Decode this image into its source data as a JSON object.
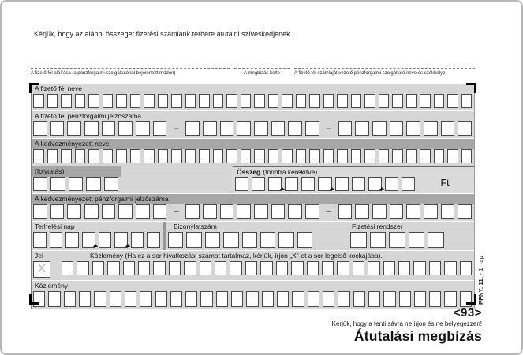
{
  "header": {
    "instruction": "Kérjük, hogy az alábbi összeget fizetési számlánk terhére átutalni szíveskedjenek."
  },
  "signature_strip": {
    "payer_signature": "A fizető fél aláírása (a pénzforgalmi szolgáltatónál bejelentett módon)",
    "order_date": "A megbízás kelte",
    "payer_bank": "A fizető fél számláját vezető pénzforgalmi szolgáltató neve és székhelye"
  },
  "form": {
    "payer_name": {
      "label": "A fizető fél neve",
      "boxes": 32
    },
    "payer_account": {
      "label": "A fizető fél pénzforgalmi jelzőszáma",
      "groups": [
        8,
        8,
        8
      ],
      "separator": "–"
    },
    "beneficiary_name": {
      "label": "A kedvezményezett neve",
      "boxes": 32
    },
    "continuation": {
      "label": "(folytatás)",
      "boxes": 5
    },
    "amount": {
      "label_bold": "Összeg",
      "label_note": "(forintra kerekítve)",
      "boxes": 11,
      "tick_after": [
        2,
        5,
        8
      ],
      "currency": "Ft"
    },
    "beneficiary_account": {
      "label": "A kedvezményezett pénzforgalmi jelzőszáma",
      "groups": [
        8,
        8,
        8
      ],
      "separator": "–"
    },
    "debit_day": {
      "label": "Terhelési nap",
      "boxes": 8,
      "tick_after": [
        3,
        5
      ]
    },
    "voucher_number": {
      "label": "Bizonylatszám",
      "boxes": 8
    },
    "payment_system": {
      "label": "Fizetési rendszer",
      "boxes": 5
    },
    "flag": {
      "label": "Jel",
      "watermark": "X"
    },
    "remittance_ref": {
      "label": "Közlemény (Ha ez a sor hivatkozási számot tartalmaz, kérjük, írjon „X”-et a sor legelső kockájába).",
      "boxes": 27
    },
    "remittance": {
      "label": "Közlemény",
      "boxes": 29
    }
  },
  "footer": {
    "code": "<93>",
    "note": "Kérjük, hogy a fenti sávra ne írjon és ne bélyegezzen!",
    "title": "Átutalási megbízás",
    "form_number": "PFNY. 11.",
    "sheet": " - 1. lap"
  },
  "colors": {
    "band_light": "#d6d6d6",
    "band_dark": "#a7a7a7",
    "box_border": "#4a4a4a",
    "ink": "#1a1a1a",
    "watermark_gray": "#c4c4c4"
  }
}
